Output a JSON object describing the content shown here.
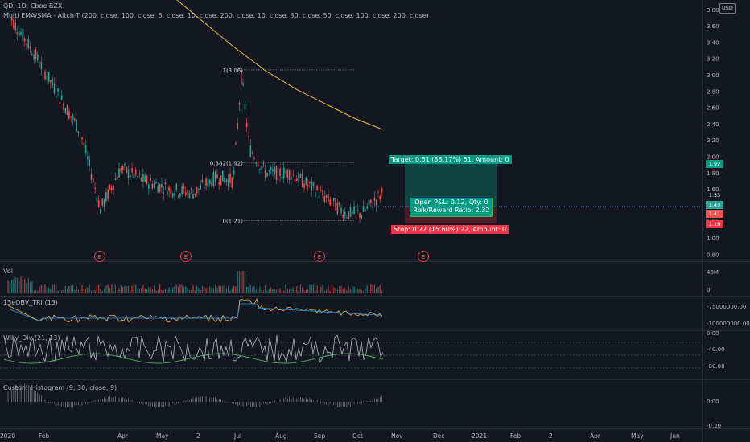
{
  "header": {
    "symbol_line": "QD, 1D, Cboe BZX",
    "indicator_line": "Multi EMA/SMA - Aitch-T (200, close, 100, close, 5, close, 10, close, 200, close, 10, close, 30, close, 50, close, 100, close, 200, close)",
    "currency_badge": "USD"
  },
  "price_axis": {
    "ticks": [
      "3.80",
      "3.60",
      "3.40",
      "3.20",
      "3.00",
      "2.80",
      "2.60",
      "2.40",
      "2.20",
      "2.00",
      "1.80",
      "1.60",
      "1.40",
      "1.20",
      "1.00",
      "0.80"
    ],
    "tags": [
      {
        "label": "1.92",
        "color": "#089981"
      },
      {
        "label": "1.53",
        "color": "#131722"
      },
      {
        "label": "1.43",
        "color": "#26a69a"
      },
      {
        "label": "1.41",
        "color": "#ef5350"
      },
      {
        "label": "1.19",
        "color": "#f23645"
      }
    ]
  },
  "fib_levels": [
    {
      "label": "1(3.06)",
      "price": 3.06
    },
    {
      "label": "0.382(1.92)",
      "price": 1.92
    },
    {
      "label": "0(1.21)",
      "price": 1.21
    }
  ],
  "trade": {
    "target": "Target: 0.51 (36.17%) 51, Amount: 0",
    "open_pl": "Open P&L: 0.12, Qty: 0",
    "risk_reward": "Risk/Reward Ratio: 2.32",
    "stop": "Stop: 0.22 (15.60%) 22, Amount: 0"
  },
  "earnings_marker": "E",
  "panes": {
    "volume": {
      "title": "Vol",
      "ticks": [
        "40M",
        "0"
      ]
    },
    "obv": {
      "title": "13eOBV_TRI (13)",
      "ticks": [
        "-75000000.00",
        "-100000000.00"
      ]
    },
    "willy": {
      "title": "Willy_Div (21, 13)",
      "ticks": [
        "0.00",
        "-40.00",
        "-80.00"
      ]
    },
    "histogram": {
      "title": "Custom_Histogram (9, 30, close, 9)",
      "ticks": [
        "0.00",
        "-0.20"
      ]
    }
  },
  "time_axis": [
    "2020",
    "Feb",
    "Apr",
    "May",
    "2",
    "Jul",
    "Aug",
    "Sep",
    "Oct",
    "Nov",
    "Dec",
    "2021",
    "Feb",
    "2",
    "Apr",
    "May",
    "Jun"
  ],
  "colors": {
    "background": "#131722",
    "up": "#26a69a",
    "down": "#ef5350",
    "ema200": "#f5b942",
    "target_green": "#089981",
    "stop_red": "#f23645"
  }
}
